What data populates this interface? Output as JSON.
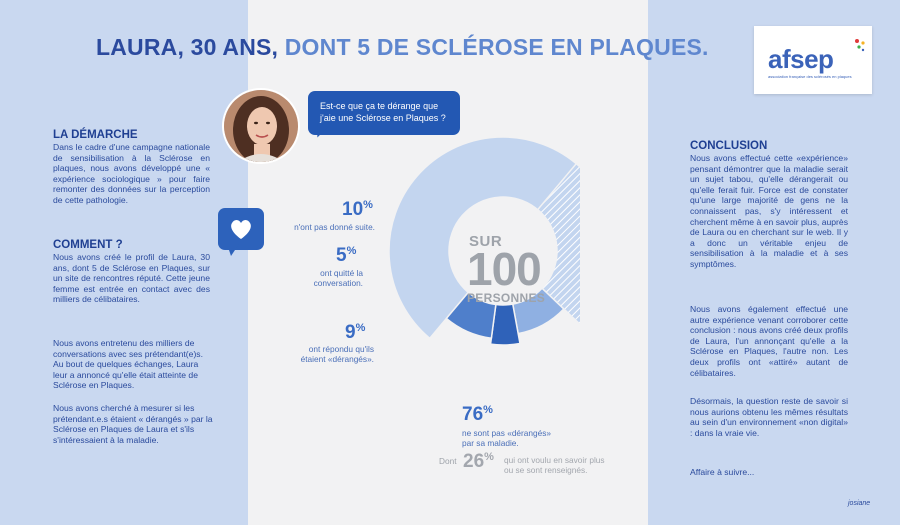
{
  "title": {
    "part1": "LAURA, 30 ANS,",
    "part2": " DONT 5 DE SCLÉROSE EN PLAQUES."
  },
  "logo": {
    "word": "afsep",
    "tagline": "association française des sclérosés en plaques"
  },
  "bubble": {
    "line1": "Est-ce que ça te dérange que",
    "line2": "j'aie une Sclérose en Plaques ?"
  },
  "left": {
    "demarche": {
      "heading": "LA DÉMARCHE",
      "text": "Dans le cadre d'une campagne nationale de sensibilisation à la Sclérose en plaques, nous avons développé une « expérience sociologique » pour faire remonter des données sur la perception de cette pathologie."
    },
    "comment": {
      "heading": "COMMENT ?",
      "para1": "Nous avons créé le profil de Laura, 30 ans, dont 5 de Sclérose en Plaques, sur un site de rencontres réputé. Cette jeune femme est entrée en contact avec des milliers de célibataires.",
      "para2": "Nous avons entretenu des milliers de conversations avec ses prétendant(e)s. Au bout de quelques échanges, Laura leur a annoncé qu'elle était atteinte de Sclérose en Plaques.",
      "para3": "Nous avons cherché à mesurer si les prétendant.e.s étaient « dérangés » par la Sclérose en Plaques de Laura et s'ils s'intéressaient à la maladie."
    }
  },
  "right": {
    "heading": "CONCLUSION",
    "para1": "Nous avons effectué cette «expérience» pensant démontrer que la maladie serait un sujet tabou, qu'elle dérangerait ou qu'elle ferait fuir. Force est de constater qu'une large majorité de gens ne la connaissent pas, s'y intéressent et cherchent même à en savoir plus, auprès de Laura ou en cherchant sur le web. Il y a donc un véritable enjeu de sensibilisation à la maladie et à ses symptômes.",
    "para2": "Nous avons également effectué une autre expérience venant corroborer cette conclusion : nous avons créé deux profils de Laura, l'un annonçant qu'elle a la Sclérose en Plaques, l'autre non. Les deux profils ont «attiré» autant de célibataires.",
    "para3": "Désormais, la question reste de savoir si nous aurions obtenu les mêmes résultats au sein d'un environnement «non digital» : dans la vraie vie.",
    "para4": "Affaire à suivre..."
  },
  "center": {
    "sur": "SUR",
    "number": "100",
    "personnes": "PERSONNES"
  },
  "extra": {
    "dont": "Dont",
    "pct": "26",
    "sym": "%",
    "label1": "qui ont voulu en savoir plus",
    "label2": "ou se sont renseignés."
  },
  "signature": "josiane",
  "chart_data": {
    "type": "pie",
    "donut": true,
    "title": "",
    "slices": [
      {
        "value": 76,
        "pct": "76",
        "sym": "%",
        "label1": "ne sont pas «dérangés»",
        "label2": "par sa maladie.",
        "color": "#c3d5ef"
      },
      {
        "value": 10,
        "pct": "10",
        "sym": "%",
        "label1": "n'ont pas donné suite.",
        "label2": "",
        "color": "#8fb0e2"
      },
      {
        "value": 5,
        "pct": "5",
        "sym": "%",
        "label1": "ont quitté la",
        "label2": "conversation.",
        "color": "#2f62b9"
      },
      {
        "value": 9,
        "pct": "9",
        "sym": "%",
        "label1": "ont répondu qu'ils",
        "label2": "étaient «dérangés».",
        "color": "#4f7fcb"
      }
    ],
    "subset": {
      "of": 0,
      "value": 26,
      "pattern": "hatched"
    }
  }
}
